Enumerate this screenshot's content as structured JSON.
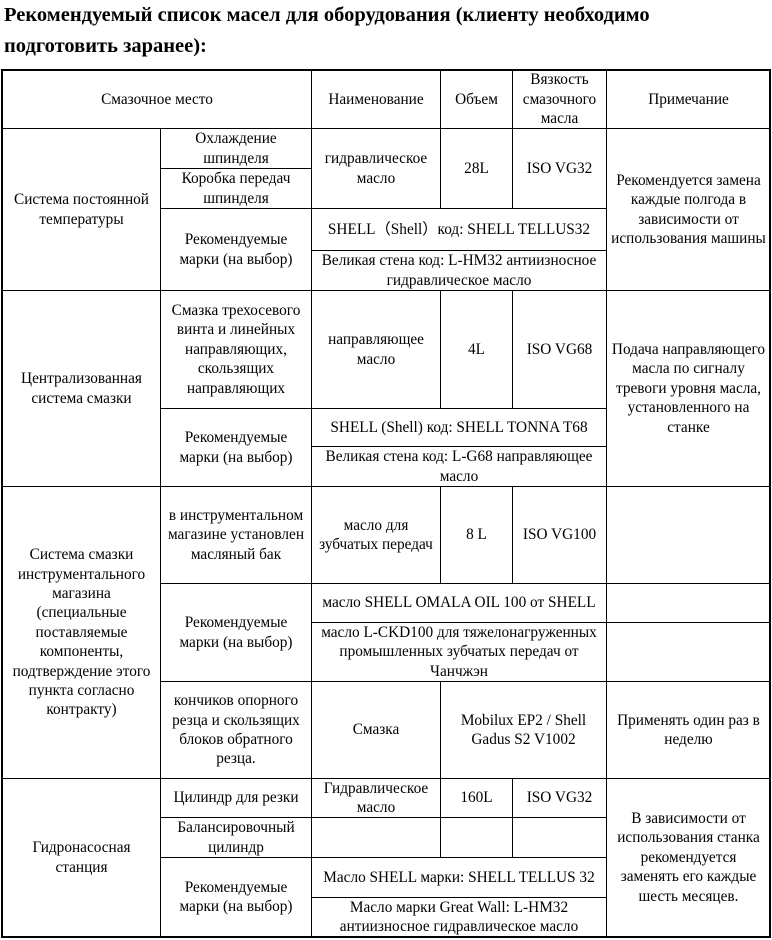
{
  "title": "Рекомендуемый список масел для оборудования (клиенту необходимо подготовить заранее):",
  "table": {
    "header": {
      "lubrication_point": "Смазочное место",
      "name": "Наименование",
      "volume": "Объем",
      "viscosity": "Вязкость смазочного масла",
      "note": "Примечание"
    },
    "sections": [
      {
        "system": "Система постоянной температуры",
        "points": [
          "Охлаждение шпинделя",
          "Коробка передач шпинделя"
        ],
        "oil_name": "гидравлическое масло",
        "volume": "28L",
        "viscosity": "ISO VG32",
        "brands_label": "Рекомендуемые марки (на выбор)",
        "brands": [
          "SHELL（Shell）код: SHELL TELLUS32",
          "Великая стена код: L-HM32 антиизносное гидравлическое масло"
        ],
        "note": "Рекомендуется замена каждые полгода в зависимости от использования машины"
      },
      {
        "system": "Централизованная система смазки",
        "points": [
          "Смазка трехосевого винта и линейных направляющих, скользящих направляющих"
        ],
        "oil_name": "направляющее масло",
        "volume": "4L",
        "viscosity": "ISO VG68",
        "brands_label": "Рекомендуемые марки (на выбор)",
        "brands": [
          "SHELL (Shell) код: SHELL TONNA T68",
          "Великая стена код: L-G68 направляющее масло"
        ],
        "note": "Подача направляющего масла по сигналу тревоги уровня масла, установленного на станке"
      },
      {
        "system": "Система смазки инструментального магазина (специальные поставляемые компоненты, подтверждение этого пункта согласно контракту)",
        "points": [
          "в инструментальном магазине установлен масляный бак",
          "кончиков опорного резца и скользящих блоков обратного резца."
        ],
        "oil_name": "масло для зубчатых передач",
        "volume": "8 L",
        "viscosity": "ISO VG100",
        "brands_label": "Рекомендуемые марки (на выбор)",
        "brands": [
          "масло SHELL OMALA OIL 100 от SHELL",
          "масло L-CKD100 для тяжелонагруженных промышленных зубчатых передач от Чанчжэн"
        ],
        "oil_name_2": "Смазка",
        "viscosity_2": "Mobilux EP2 / Shell Gadus S2 V1002",
        "note_2": "Применять один раз в неделю"
      },
      {
        "system": "Гидронасосная станция",
        "points": [
          "Цилиндр для резки",
          "Балансировочный цилиндр"
        ],
        "oil_name": "Гидравлическое масло",
        "volume": "160L",
        "viscosity": "ISO VG32",
        "brands_label": "Рекомендуемые марки (на выбор)",
        "brands": [
          "Масло SHELL марки: SHELL TELLUS 32",
          "Масло марки Great Wall: L-HM32 антиизносное гидравлическое масло"
        ],
        "note": "В зависимости от использования станка рекомендуется заменять его каждые шесть месяцев."
      }
    ]
  }
}
